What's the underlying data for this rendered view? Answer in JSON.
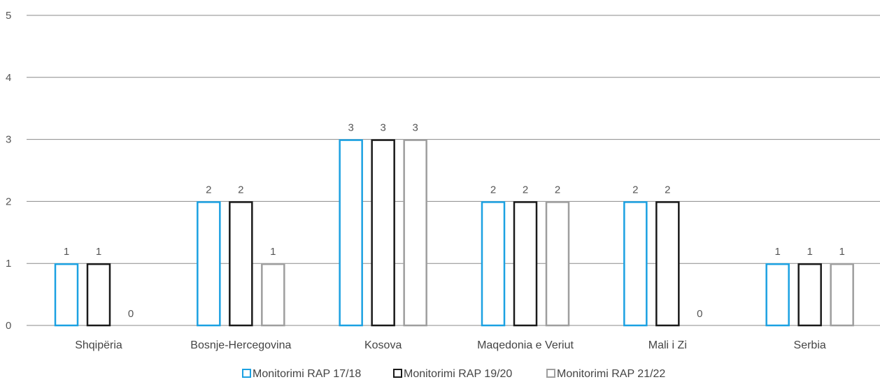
{
  "chart_data": {
    "type": "bar",
    "categories": [
      "Shqipëria",
      "Bosnje-Hercegovina",
      "Kosova",
      "Maqedonia e Veriut",
      "Mali i Zi",
      "Serbia"
    ],
    "series": [
      {
        "name": "Monitorimi RAP 17/18",
        "color": "#1ba1e2",
        "values": [
          1,
          2,
          3,
          2,
          2,
          1
        ]
      },
      {
        "name": "Monitorimi RAP 19/20",
        "color": "#1a1a1a",
        "values": [
          1,
          2,
          3,
          2,
          2,
          1
        ]
      },
      {
        "name": "Monitorimi RAP 21/22",
        "color": "#9e9e9e",
        "values": [
          0,
          1,
          3,
          2,
          0,
          1
        ]
      }
    ],
    "ylim": [
      0,
      5
    ],
    "yticks": [
      0,
      1,
      2,
      3,
      4,
      5
    ],
    "grid": true,
    "legend_position": "bottom-center",
    "title": "",
    "xlabel": "",
    "ylabel": ""
  }
}
